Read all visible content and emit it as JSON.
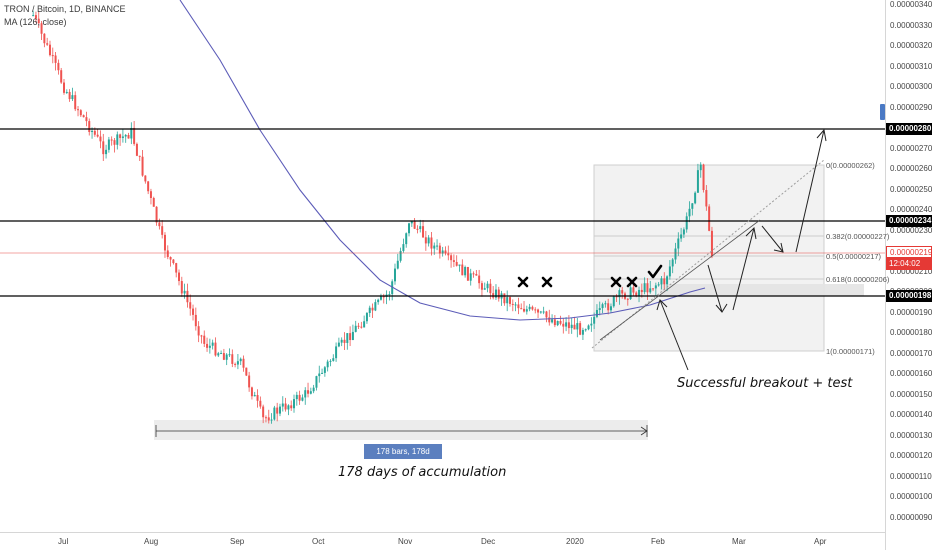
{
  "header": {
    "symbol_line": "TRON / Bitcoin, 1D, BINANCE",
    "ma_line": "MA (126, close)"
  },
  "price_tags": {
    "level_top": "0.00000280",
    "level_mid": "0.00000234",
    "current": "0.00000219",
    "countdown": "12:04:02",
    "level_bottom": "0.00000198"
  },
  "fib_levels": [
    {
      "text": "0(0.00000262)",
      "price": 262
    },
    {
      "text": "0.382(0.00000227)",
      "price": 227
    },
    {
      "text": "0.5(0.00000217)",
      "price": 217
    },
    {
      "text": "0.618(0.00000206)",
      "price": 206
    },
    {
      "text": "1(0.00000171)",
      "price": 171
    }
  ],
  "annotations": {
    "breakout": "Successful breakout + test",
    "accumulation": "178 days of accumulation",
    "range_label": "178 bars, 178d"
  },
  "colors": {
    "up": "#26a69a",
    "down": "#ef5350",
    "ma": "#5c5cb8",
    "current_price": "#e53935",
    "range_label": "#5b7fbf"
  },
  "chart_data": {
    "type": "candlestick",
    "title": "TRON / Bitcoin, 1D, BINANCE",
    "x_unit": "date",
    "y_unit": "BTC (x1e-8)",
    "x_ticks": [
      "Jul",
      "Aug",
      "Sep",
      "Oct",
      "Nov",
      "Dec",
      "2020",
      "Feb",
      "Mar",
      "Apr"
    ],
    "y_ticks": [
      "0.00000340",
      "0.00000330",
      "0.00000320",
      "0.00000310",
      "0.00000300",
      "0.00000290",
      "0.00000280",
      "0.00000270",
      "0.00000260",
      "0.00000250",
      "0.00000240",
      "0.00000230",
      "0.00000220",
      "0.00000210",
      "0.00000200",
      "0.00000190",
      "0.00000180",
      "0.00000170",
      "0.00000160",
      "0.00000150",
      "0.00000140",
      "0.00000130",
      "0.00000120",
      "0.00000110",
      "0.00000100",
      "0.00000090"
    ],
    "ylim": [
      8.5e-07,
      3.46e-06
    ],
    "horizontal_levels": [
      2.8e-06,
      2.34e-06,
      1.98e-06
    ],
    "current_price": 2.19e-06,
    "moving_average": "MA (126, close)",
    "approx_path": [
      {
        "date": "2019-06-20",
        "price": 3.35e-06
      },
      {
        "date": "2019-07-01",
        "price": 3e-06
      },
      {
        "date": "2019-07-15",
        "price": 2.7e-06
      },
      {
        "date": "2019-07-25",
        "price": 2.78e-06
      },
      {
        "date": "2019-08-05",
        "price": 2.25e-06
      },
      {
        "date": "2019-08-20",
        "price": 1.75e-06
      },
      {
        "date": "2019-09-02",
        "price": 1.65e-06
      },
      {
        "date": "2019-09-10",
        "price": 1.38e-06
      },
      {
        "date": "2019-09-25",
        "price": 1.5e-06
      },
      {
        "date": "2019-10-10",
        "price": 1.78e-06
      },
      {
        "date": "2019-10-25",
        "price": 2e-06
      },
      {
        "date": "2019-11-01",
        "price": 2.35e-06
      },
      {
        "date": "2019-11-15",
        "price": 2.15e-06
      },
      {
        "date": "2019-12-01",
        "price": 2e-06
      },
      {
        "date": "2019-12-15",
        "price": 1.9e-06
      },
      {
        "date": "2020-01-01",
        "price": 1.82e-06
      },
      {
        "date": "2020-01-15",
        "price": 1.98e-06
      },
      {
        "date": "2020-01-31",
        "price": 2.05e-06
      },
      {
        "date": "2020-02-08",
        "price": 2.35e-06
      },
      {
        "date": "2020-02-13",
        "price": 2.62e-06
      },
      {
        "date": "2020-02-17",
        "price": 2.19e-06
      }
    ]
  }
}
